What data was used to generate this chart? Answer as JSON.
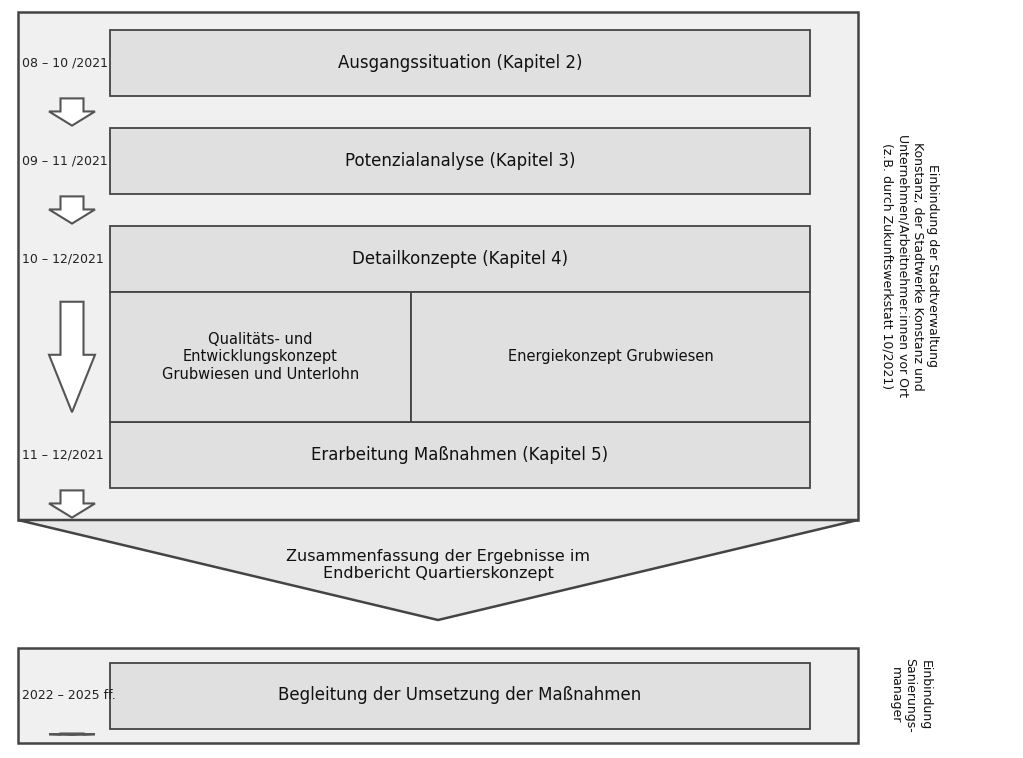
{
  "bg_color": "#ffffff",
  "box_fill": "#e0e0e0",
  "box_edge": "#444444",
  "outer_fill": "#f0f0f0",
  "rows": [
    {
      "label": "08 – 10 /2021",
      "text": "Ausgangssituation (Kapitel 2)"
    },
    {
      "label": "09 – 11 /2021",
      "text": "Potenzialanalyse (Kapitel 3)"
    },
    {
      "label": "10 – 12/2021",
      "text": "Detailkonzepte (Kapitel 4)"
    },
    {
      "label": "11 – 12/2021",
      "text": "Erarbeitung Maßnahmen (Kapitel 5)"
    }
  ],
  "sub_left_text": "Qualitäts- und\nEntwicklungskonzept\nGrubwiesen und Unterlohn",
  "sub_right_text": "Energiekonzept Grubwiesen",
  "right_text_lines": [
    "Einbindung der Stadtverwaltung",
    "Konstanz, der Stadtwerke Konstanz und",
    "Unternehmen/Arbeitnehmer:innen vor Ort",
    "(z.B. durch Zukunftswerkstatt 10/2021)"
  ],
  "funnel_text": "Zusammenfassung der Ergebnisse im\nEndbericht Quartierskonzept",
  "bottom_label": "2022 – 2025 ff.",
  "bottom_text": "Begleitung der Umsetzung der Maßnahmen",
  "bottom_right_lines": [
    "Einbindung",
    "Sanierungs-",
    "manager"
  ]
}
